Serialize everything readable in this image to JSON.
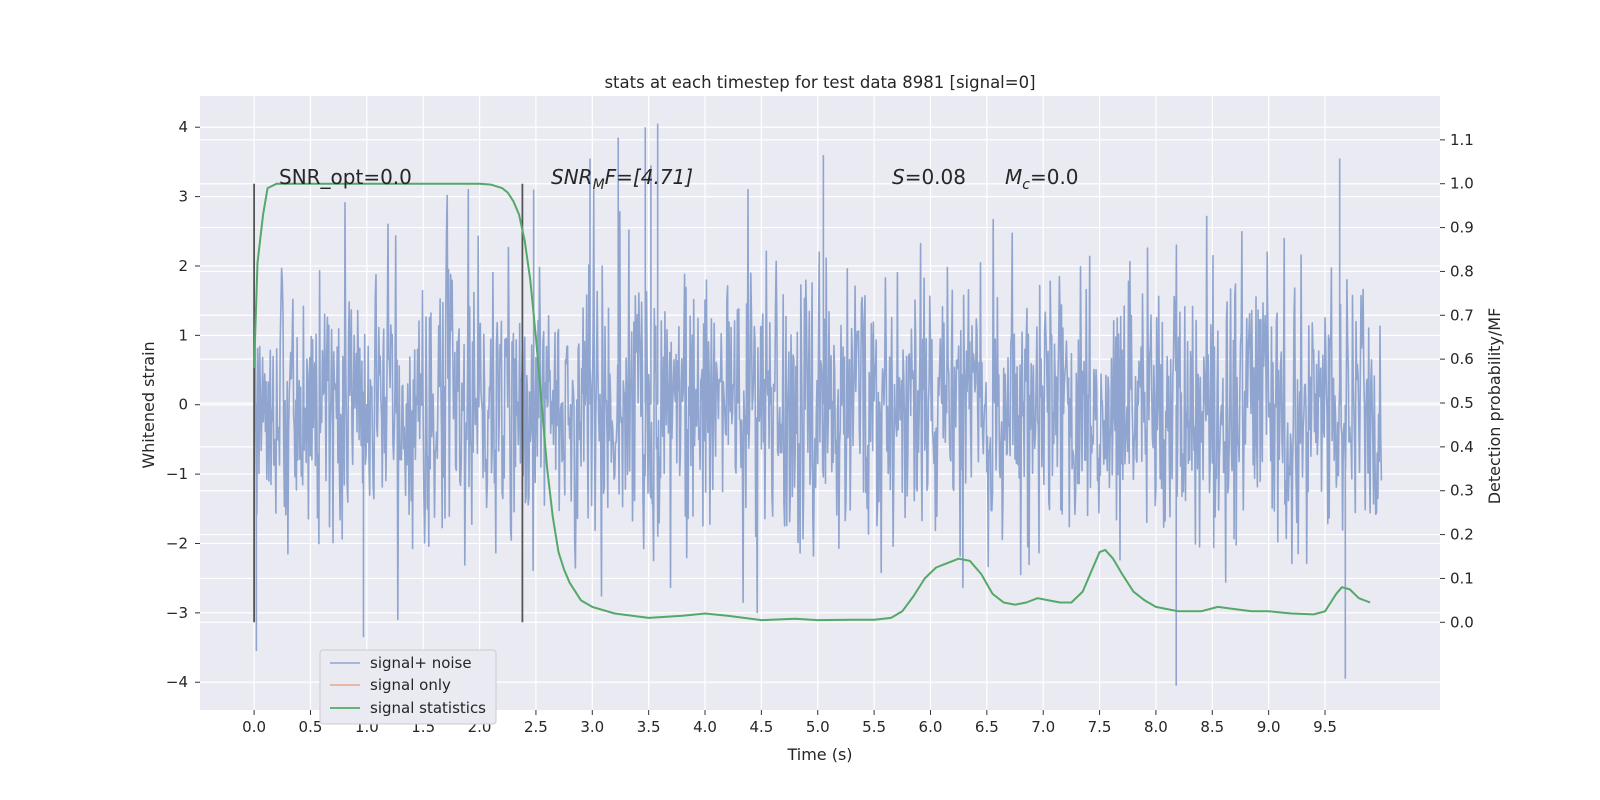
{
  "chart_data": {
    "type": "line",
    "title": "stats at each timestep for test data 8981 [signal=0]",
    "xlabel": "Time (s)",
    "ylabel": "Whitened strain",
    "ylabel_right": "Detection probability/MF",
    "xlim": [
      -0.48,
      10.52
    ],
    "ylim": [
      -4.4,
      4.45
    ],
    "ylim_right": [
      -0.2,
      1.2
    ],
    "x_ticks": [
      "0.0",
      "0.5",
      "1.0",
      "1.5",
      "2.0",
      "2.5",
      "3.0",
      "3.5",
      "4.0",
      "4.5",
      "5.0",
      "5.5",
      "6.0",
      "6.5",
      "7.0",
      "7.5",
      "8.0",
      "8.5",
      "9.0",
      "9.5"
    ],
    "y_ticks": [
      "−4",
      "−3",
      "−2",
      "−1",
      "0",
      "1",
      "2",
      "3",
      "4"
    ],
    "y_right_ticks": [
      "0.0",
      "0.1",
      "0.2",
      "0.3",
      "0.4",
      "0.5",
      "0.6",
      "0.7",
      "0.8",
      "0.9",
      "1.0",
      "1.1"
    ],
    "grid": true,
    "annotations": {
      "snr_opt": "SNR_opt=0.0",
      "snr_mf_base": "SNR",
      "snr_mf_sub": "M",
      "snr_mf_rest": "F=[4.71]",
      "s_symbol": "S",
      "s_rest": "=0.08",
      "mc_base": "M",
      "mc_sub": "c",
      "mc_rest": "=0.0"
    },
    "vlines_x": [
      0.0,
      2.38
    ],
    "series": [
      {
        "name": "signal+ noise",
        "color": "#8fa5cf",
        "x_range": [
          0.0,
          10.0
        ],
        "note_values": "whitened noise, roughly Gaussian, peaks about ±3.6",
        "peaks_x": [
          0.02,
          0.97,
          2.48,
          2.98,
          3.23,
          3.47,
          3.52,
          3.58,
          5.05,
          8.18,
          9.63,
          9.68
        ],
        "peaks_y": [
          -3.55,
          -3.35,
          3.1,
          3.55,
          3.85,
          4.0,
          3.45,
          4.05,
          3.6,
          -4.05,
          3.55,
          -3.95
        ]
      },
      {
        "name": "signal only",
        "color": "#e8a68b",
        "values": []
      },
      {
        "name": "signal statistics",
        "color": "#55a868",
        "axis": "right",
        "x": [
          0.0,
          0.03,
          0.08,
          0.12,
          0.2,
          0.3,
          0.5,
          1.0,
          1.5,
          1.8,
          2.0,
          2.1,
          2.2,
          2.25,
          2.3,
          2.35,
          2.4,
          2.45,
          2.5,
          2.55,
          2.6,
          2.65,
          2.7,
          2.75,
          2.8,
          2.9,
          3.0,
          3.2,
          3.5,
          3.8,
          4.0,
          4.2,
          4.5,
          4.8,
          5.0,
          5.3,
          5.5,
          5.65,
          5.75,
          5.85,
          5.95,
          6.05,
          6.15,
          6.25,
          6.35,
          6.45,
          6.55,
          6.65,
          6.75,
          6.85,
          6.95,
          7.05,
          7.15,
          7.25,
          7.35,
          7.45,
          7.5,
          7.55,
          7.62,
          7.7,
          7.8,
          7.9,
          8.0,
          8.2,
          8.4,
          8.55,
          8.7,
          8.85,
          9.0,
          9.2,
          9.4,
          9.5,
          9.55,
          9.6,
          9.65,
          9.72,
          9.8,
          9.9
        ],
        "y": [
          0.58,
          0.82,
          0.93,
          0.99,
          1.0,
          1.0,
          1.0,
          1.0,
          1.0,
          1.0,
          1.0,
          0.998,
          0.99,
          0.98,
          0.96,
          0.93,
          0.87,
          0.78,
          0.65,
          0.5,
          0.35,
          0.24,
          0.16,
          0.12,
          0.09,
          0.05,
          0.035,
          0.02,
          0.01,
          0.015,
          0.02,
          0.015,
          0.005,
          0.008,
          0.005,
          0.006,
          0.006,
          0.01,
          0.025,
          0.06,
          0.1,
          0.125,
          0.135,
          0.145,
          0.14,
          0.11,
          0.065,
          0.045,
          0.04,
          0.045,
          0.055,
          0.05,
          0.045,
          0.045,
          0.07,
          0.13,
          0.16,
          0.165,
          0.145,
          0.11,
          0.07,
          0.05,
          0.035,
          0.025,
          0.025,
          0.035,
          0.03,
          0.025,
          0.025,
          0.02,
          0.018,
          0.025,
          0.045,
          0.065,
          0.08,
          0.075,
          0.055,
          0.045
        ]
      }
    ],
    "legend": {
      "placement": "lower-left",
      "entries": [
        "signal+ noise",
        "signal only",
        "signal statistics"
      ]
    },
    "colors": {
      "background": "#eaeaf2",
      "grid": "#ffffff",
      "vline": "#555555",
      "text": "#262626"
    }
  }
}
